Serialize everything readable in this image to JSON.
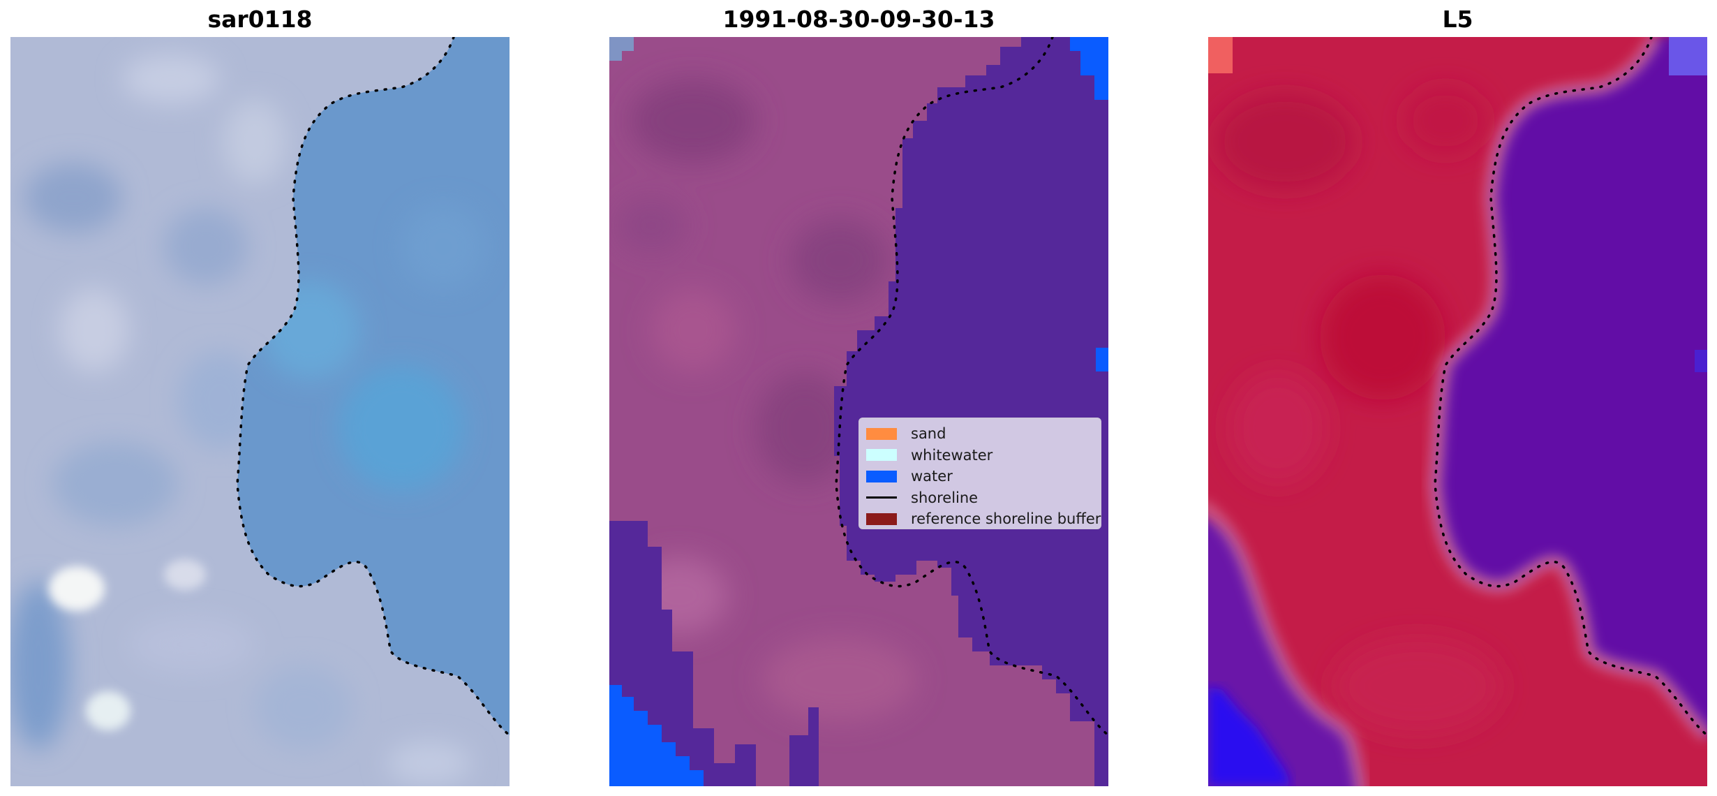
{
  "panels": [
    {
      "title": "sar0118"
    },
    {
      "title": "1991-08-30-09-30-13"
    },
    {
      "title": "L5"
    }
  ],
  "legend": {
    "items": [
      {
        "label": "sand",
        "color": "#ff8c40",
        "kind": "patch"
      },
      {
        "label": "whitewater",
        "color": "#ccffff",
        "kind": "patch"
      },
      {
        "label": "water",
        "color": "#0a5cff",
        "kind": "patch"
      },
      {
        "label": "shoreline",
        "color": "#000000",
        "kind": "line"
      },
      {
        "label": "reference shoreline buffer",
        "color": "#8b1a1a",
        "kind": "patch"
      }
    ]
  },
  "colors": {
    "rgb_land": "#b4bcd8",
    "rgb_water": "#6a98cc",
    "classified_land": "#9a4c8a",
    "classified_water": "#55289a",
    "classified_open_water": "#0a5cff",
    "index_land": "#c41c48",
    "index_water": "#6210a6"
  }
}
